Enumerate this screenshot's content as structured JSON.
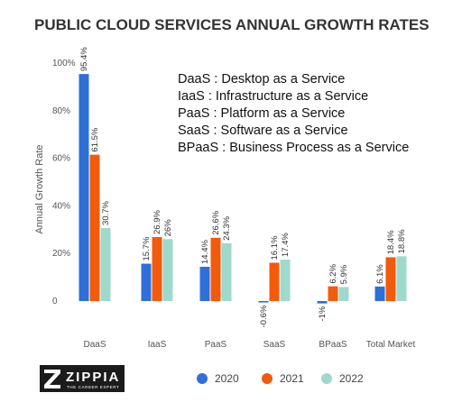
{
  "chart_data": {
    "type": "bar",
    "title": "PUBLIC CLOUD SERVICES ANNUAL GROWTH RATES",
    "ylabel": "Annual Growth Rate",
    "xlabel": "",
    "ylim": [
      0,
      100
    ],
    "yticks": [
      "0",
      "20%",
      "40%",
      "60%",
      "80%",
      "100%"
    ],
    "ytick_values": [
      0,
      20,
      40,
      60,
      80,
      100
    ],
    "categories": [
      "DaaS",
      "IaaS",
      "PaaS",
      "SaaS",
      "BPaaS",
      "Total Market"
    ],
    "series": [
      {
        "name": "2020",
        "color": "#2f6fd8",
        "values": [
          95.4,
          15.7,
          14.4,
          -0.6,
          -1,
          6.1
        ],
        "labels": [
          "95.4%",
          "15.7%",
          "14.4%",
          "-0.6%",
          "-1%",
          "6.1%"
        ]
      },
      {
        "name": "2021",
        "color": "#f25a0c",
        "values": [
          61.5,
          26.9,
          26.6,
          16.1,
          6.2,
          18.4
        ],
        "labels": [
          "61.5%",
          "26.9%",
          "26.6%",
          "16.1%",
          "6.2%",
          "18.4%"
        ]
      },
      {
        "name": "2022",
        "color": "#9ed9cc",
        "values": [
          30.7,
          26,
          24.3,
          17.4,
          5.9,
          18.8
        ],
        "labels": [
          "30.7%",
          "26%",
          "24.3%",
          "17.4%",
          "5.9%",
          "18.8%"
        ]
      }
    ],
    "grid": false,
    "legend_position": "bottom"
  },
  "glossary": [
    "DaaS : Desktop as a Service",
    "IaaS : Infrastructure as a Service",
    "PaaS : Platform as a Service",
    "SaaS :  Software as a Service",
    "BPaaS : Business Process as a Service"
  ],
  "logo": {
    "name": "ZIPPIA",
    "tagline": "THE CAREER EXPERT"
  }
}
